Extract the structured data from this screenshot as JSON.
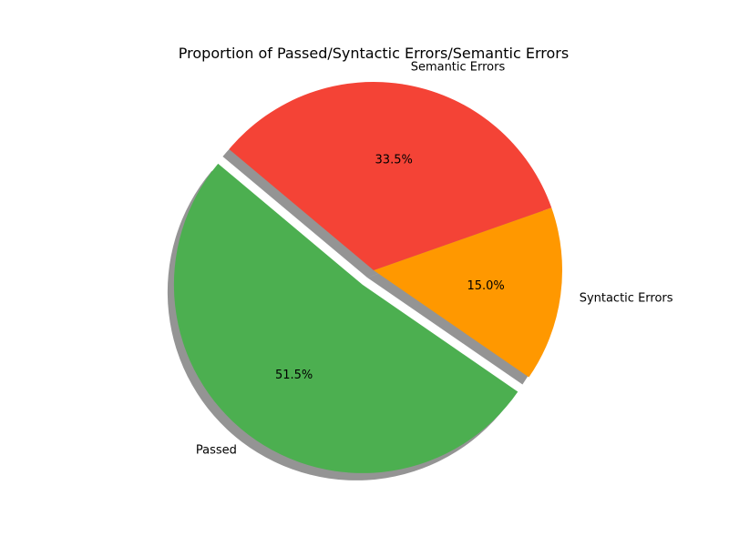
{
  "chart_data": {
    "type": "pie",
    "title": "Proportion of Passed/Syntactic Errors/Semantic Errors",
    "slices": [
      {
        "label": "Passed",
        "value": 51.5,
        "pct_label": "51.5%",
        "color": "#4caf50",
        "exploded": true
      },
      {
        "label": "Syntactic Errors",
        "value": 15.0,
        "pct_label": "15.0%",
        "color": "#ff9800",
        "exploded": false
      },
      {
        "label": "Semantic Errors",
        "value": 33.5,
        "pct_label": "33.5%",
        "color": "#f44336",
        "exploded": false
      }
    ],
    "start_angle_deg": 140,
    "direction": "counterclockwise",
    "shadow": true
  }
}
